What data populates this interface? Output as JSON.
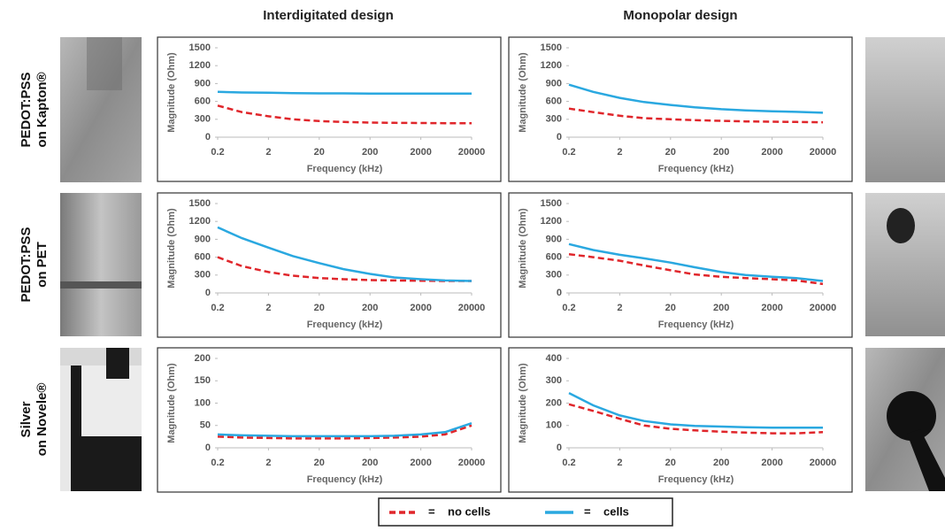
{
  "column_titles": [
    "Interdigitated design",
    "Monopolar design"
  ],
  "row_labels": [
    [
      "PEDOT:PSS",
      "on Kapton®"
    ],
    [
      "PEDOT:PSS",
      "on PET"
    ],
    [
      "Silver",
      "on Novele®"
    ]
  ],
  "legend_separator": "=",
  "chart_data": [
    {
      "type": "line",
      "x_label": "Frequency (kHz)",
      "y_label": "Magnitude (Ohm)",
      "log_x": true,
      "x": [
        0.2,
        0.6,
        2,
        6,
        20,
        60,
        200,
        600,
        2000,
        6000,
        20000
      ],
      "xlim": [
        0.2,
        20000
      ],
      "xticks": [
        0.2,
        2,
        20,
        200,
        2000,
        20000
      ],
      "ylim": [
        0,
        1500
      ],
      "yticks": [
        0,
        300,
        600,
        900,
        1200,
        1500
      ],
      "series": [
        {
          "name": "no cells",
          "color": "#e0262b",
          "dashed": true,
          "values": [
            530,
            420,
            350,
            300,
            270,
            255,
            245,
            240,
            238,
            235,
            235
          ]
        },
        {
          "name": "cells",
          "color": "#2aa8e0",
          "dashed": false,
          "values": [
            760,
            750,
            745,
            740,
            735,
            735,
            730,
            730,
            730,
            730,
            730
          ]
        }
      ]
    },
    {
      "type": "line",
      "x_label": "Frequency (kHz)",
      "y_label": "Magnitude (Ohm)",
      "log_x": true,
      "x": [
        0.2,
        0.6,
        2,
        6,
        20,
        60,
        200,
        600,
        2000,
        6000,
        20000
      ],
      "xlim": [
        0.2,
        20000
      ],
      "xticks": [
        0.2,
        2,
        20,
        200,
        2000,
        20000
      ],
      "ylim": [
        0,
        1500
      ],
      "yticks": [
        0,
        300,
        600,
        900,
        1200,
        1500
      ],
      "series": [
        {
          "name": "no cells",
          "color": "#e0262b",
          "dashed": true,
          "values": [
            480,
            420,
            360,
            320,
            300,
            285,
            275,
            265,
            260,
            255,
            250
          ]
        },
        {
          "name": "cells",
          "color": "#2aa8e0",
          "dashed": false,
          "values": [
            880,
            760,
            660,
            590,
            540,
            500,
            470,
            450,
            435,
            425,
            410
          ]
        }
      ]
    },
    {
      "type": "line",
      "x_label": "Frequency (kHz)",
      "y_label": "Magnitude (Ohm)",
      "log_x": true,
      "x": [
        0.2,
        0.6,
        2,
        6,
        20,
        60,
        200,
        600,
        2000,
        6000,
        20000
      ],
      "xlim": [
        0.2,
        20000
      ],
      "xticks": [
        0.2,
        2,
        20,
        200,
        2000,
        20000
      ],
      "ylim": [
        0,
        1500
      ],
      "yticks": [
        0,
        300,
        600,
        900,
        1200,
        1500
      ],
      "series": [
        {
          "name": "no cells",
          "color": "#e0262b",
          "dashed": true,
          "values": [
            600,
            450,
            350,
            290,
            250,
            230,
            215,
            210,
            205,
            200,
            200
          ]
        },
        {
          "name": "cells",
          "color": "#2aa8e0",
          "dashed": false,
          "values": [
            1100,
            920,
            760,
            620,
            500,
            400,
            320,
            260,
            230,
            210,
            200
          ]
        }
      ]
    },
    {
      "type": "line",
      "x_label": "Frequency (kHz)",
      "y_label": "Magnitude (Ohm)",
      "log_x": true,
      "x": [
        0.2,
        0.6,
        2,
        6,
        20,
        60,
        200,
        600,
        2000,
        6000,
        20000
      ],
      "xlim": [
        0.2,
        20000
      ],
      "xticks": [
        0.2,
        2,
        20,
        200,
        2000,
        20000
      ],
      "ylim": [
        0,
        1500
      ],
      "yticks": [
        0,
        300,
        600,
        900,
        1200,
        1500
      ],
      "series": [
        {
          "name": "no cells",
          "color": "#e0262b",
          "dashed": true,
          "values": [
            650,
            600,
            540,
            460,
            380,
            310,
            270,
            250,
            230,
            210,
            150
          ]
        },
        {
          "name": "cells",
          "color": "#2aa8e0",
          "dashed": false,
          "values": [
            820,
            720,
            640,
            580,
            510,
            430,
            350,
            300,
            270,
            250,
            200
          ]
        }
      ]
    },
    {
      "type": "line",
      "x_label": "Frequency (kHz)",
      "y_label": "Magnitude (Ohm)",
      "log_x": true,
      "x": [
        0.2,
        0.6,
        2,
        6,
        20,
        60,
        200,
        600,
        2000,
        6000,
        20000
      ],
      "xlim": [
        0.2,
        20000
      ],
      "xticks": [
        0.2,
        2,
        20,
        200,
        2000,
        20000
      ],
      "ylim": [
        0,
        200
      ],
      "yticks": [
        0,
        50,
        100,
        150,
        200
      ],
      "series": [
        {
          "name": "no cells",
          "color": "#e0262b",
          "dashed": true,
          "values": [
            25,
            23,
            22,
            21,
            21,
            21,
            22,
            23,
            25,
            30,
            50
          ]
        },
        {
          "name": "cells",
          "color": "#2aa8e0",
          "dashed": false,
          "values": [
            30,
            28,
            27,
            26,
            26,
            26,
            26,
            27,
            30,
            35,
            55
          ]
        }
      ]
    },
    {
      "type": "line",
      "x_label": "Frequency (kHz)",
      "y_label": "Magnitude (Ohm)",
      "log_x": true,
      "x": [
        0.2,
        0.6,
        2,
        6,
        20,
        60,
        200,
        600,
        2000,
        6000,
        20000
      ],
      "xlim": [
        0.2,
        20000
      ],
      "xticks": [
        0.2,
        2,
        20,
        200,
        2000,
        20000
      ],
      "ylim": [
        0,
        400
      ],
      "yticks": [
        0,
        100,
        200,
        300,
        400
      ],
      "series": [
        {
          "name": "no cells",
          "color": "#e0262b",
          "dashed": true,
          "values": [
            195,
            165,
            130,
            100,
            85,
            78,
            72,
            68,
            65,
            65,
            70
          ]
        },
        {
          "name": "cells",
          "color": "#2aa8e0",
          "dashed": false,
          "values": [
            245,
            190,
            145,
            120,
            105,
            98,
            95,
            92,
            90,
            90,
            90
          ]
        }
      ]
    }
  ]
}
